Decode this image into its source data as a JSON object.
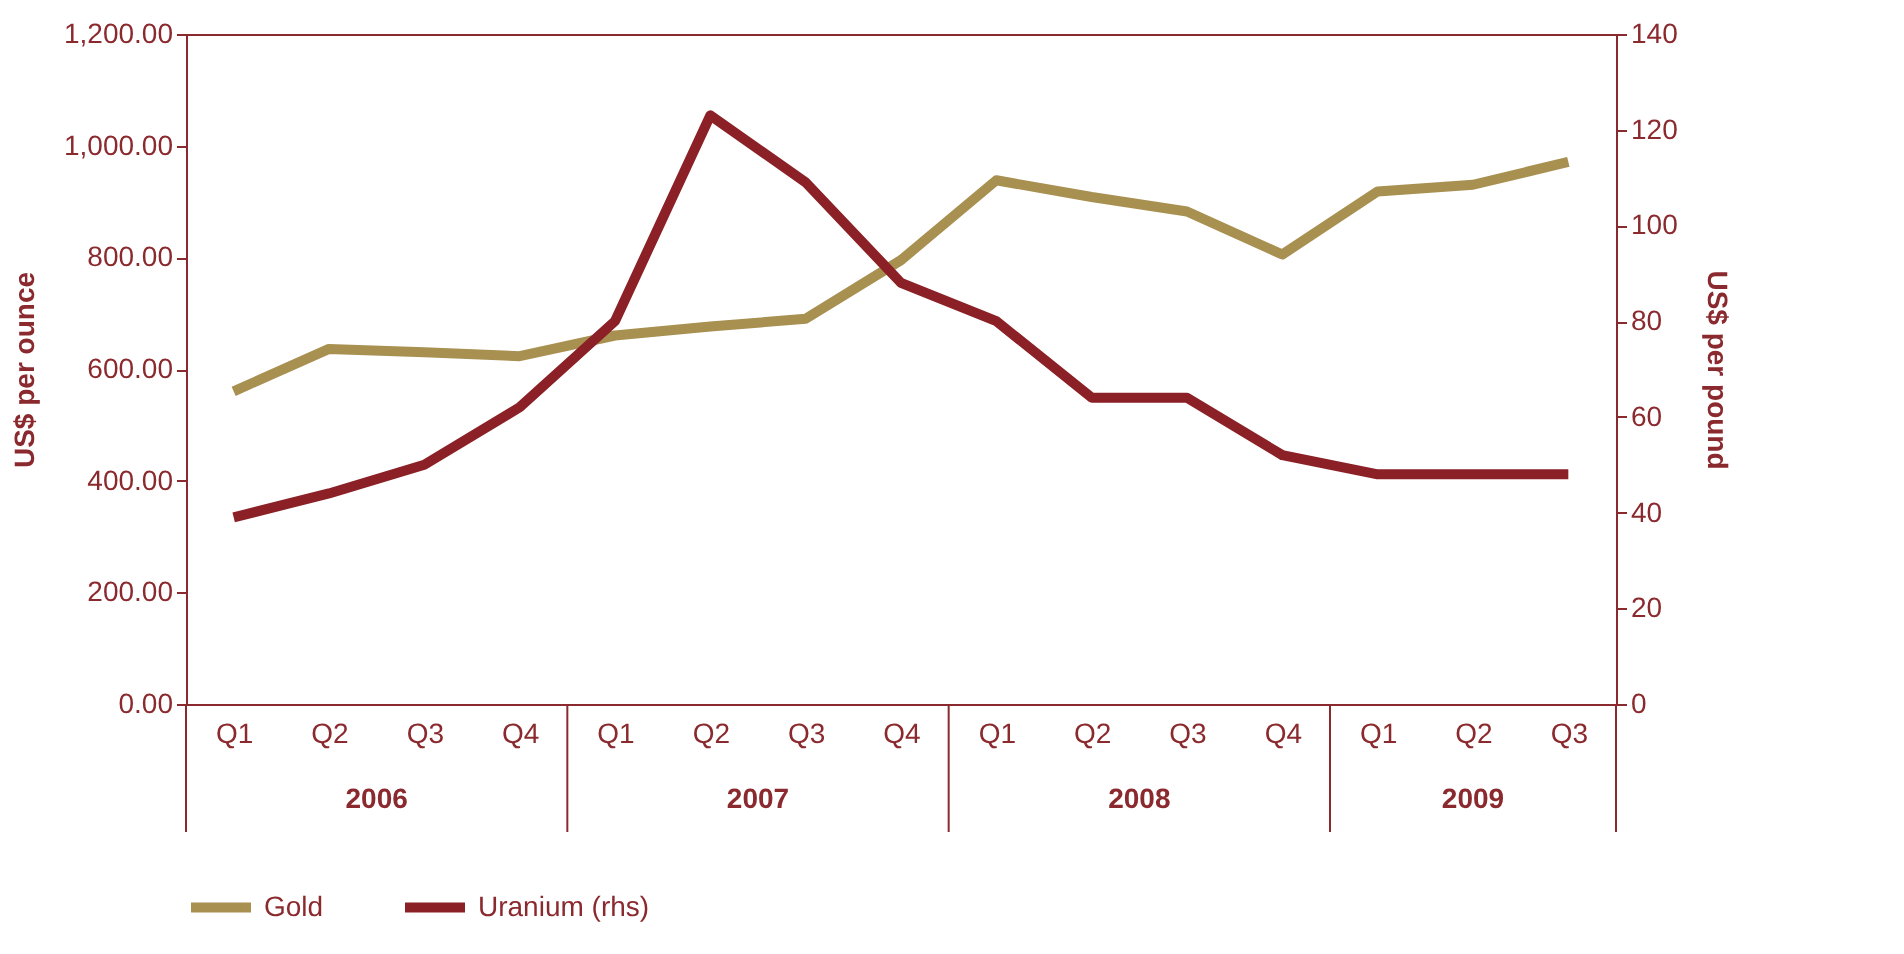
{
  "chart_data": {
    "type": "line",
    "categories": [
      "Q1",
      "Q2",
      "Q3",
      "Q4",
      "Q1",
      "Q2",
      "Q3",
      "Q4",
      "Q1",
      "Q2",
      "Q3",
      "Q4",
      "Q1",
      "Q2",
      "Q3"
    ],
    "annotations": [
      "2006",
      "2007",
      "2008",
      "2009"
    ],
    "ylabel": "US$ per ounce",
    "y2label": "US$ per pound",
    "ylim": [
      0,
      1200
    ],
    "yticks": [
      {
        "value": 0,
        "label": "0.00"
      },
      {
        "value": 200,
        "label": "200.00"
      },
      {
        "value": 400,
        "label": "400.00"
      },
      {
        "value": 600,
        "label": "600.00"
      },
      {
        "value": 800,
        "label": "800.00"
      },
      {
        "value": 1000,
        "label": "1,000.00"
      },
      {
        "value": 1200,
        "label": "1,200.00"
      }
    ],
    "y2lim": [
      0,
      140
    ],
    "y2ticks": [
      0,
      20,
      40,
      60,
      80,
      100,
      120,
      140
    ],
    "grid": false,
    "legend": "bottom",
    "line_style": "solid",
    "series": [
      {
        "name": "Gold",
        "color": "#a89050",
        "values": [
          560,
          636,
          630,
          623,
          660,
          676,
          690,
          795,
          938,
          908,
          882,
          805,
          918,
          930,
          971
        ]
      },
      {
        "name": "Uranium (rhs)",
        "color": "#8b2126",
        "axis": "y2",
        "values": [
          39,
          44,
          50,
          62,
          80,
          123,
          109,
          88,
          80,
          64,
          64,
          52,
          48,
          48,
          48
        ]
      }
    ]
  }
}
